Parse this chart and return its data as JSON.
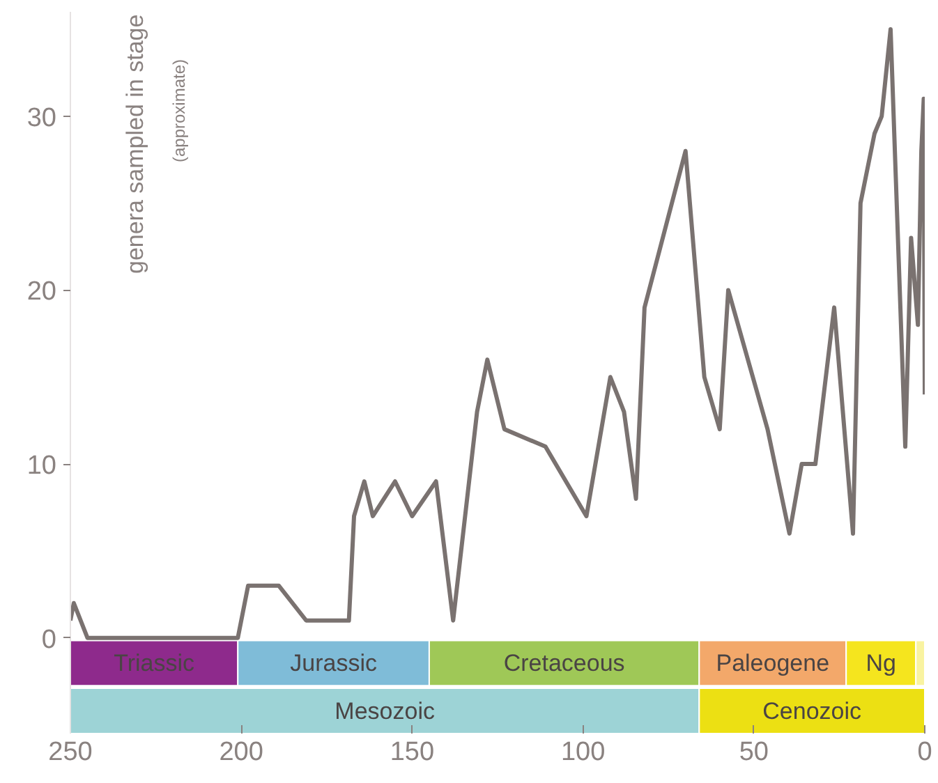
{
  "chart_data": {
    "type": "line",
    "ylabel": "genera sampled in stage",
    "annotations": [
      "(approximate)"
    ],
    "x": [
      250,
      249,
      245,
      201,
      198,
      189,
      181,
      168.5,
      167,
      164,
      161.5,
      155,
      150,
      143,
      138,
      131,
      128,
      123,
      111,
      99,
      92,
      88,
      84.5,
      82,
      70,
      64.5,
      60,
      57.5,
      46,
      39.6,
      36,
      32,
      26.5,
      21,
      18.8,
      14.7,
      12.6,
      10,
      5.7,
      4,
      2,
      1,
      0.3,
      0
    ],
    "series": [
      {
        "color": "#7a7270",
        "values": [
          1,
          2,
          0,
          0,
          3,
          3,
          1,
          1,
          7,
          9,
          7,
          9,
          7,
          9,
          1,
          13,
          16,
          12,
          11,
          7,
          15,
          13,
          8,
          19,
          28,
          15,
          12,
          20,
          12,
          6,
          10,
          10,
          19,
          6,
          25,
          29,
          30,
          35,
          11,
          23,
          18,
          28,
          31,
          14
        ]
      }
    ],
    "xlim": [
      250,
      0
    ],
    "xticks": [
      250,
      200,
      150,
      100,
      50,
      0
    ],
    "ylim": [
      -5.5,
      36
    ],
    "yticks": [
      0,
      10,
      20,
      30
    ],
    "grid": false,
    "line_style": "solid",
    "marker": "none",
    "bands": [
      {
        "axis": "x",
        "from": 250,
        "to": 201,
        "label": "Triassic",
        "color": "#8e2a8c"
      },
      {
        "axis": "x",
        "from": 201,
        "to": 145,
        "label": "Jurassic",
        "color": "#7fbcd8"
      },
      {
        "axis": "x",
        "from": 145,
        "to": 66,
        "label": "Cretaceous",
        "color": "#9fc857"
      },
      {
        "axis": "x",
        "from": 66,
        "to": 23,
        "label": "Paleogene",
        "color": "#f3a86a"
      },
      {
        "axis": "x",
        "from": 23,
        "to": 2.6,
        "label": "Ng",
        "color": "#f5e51e"
      },
      {
        "axis": "x",
        "from": 2.6,
        "to": 0,
        "label": null,
        "color": "#f9f3a0"
      },
      {
        "axis": "x",
        "from": 250,
        "to": 66,
        "label": "Mesozoic",
        "color": "#9dd3d6"
      },
      {
        "axis": "x",
        "from": 66,
        "to": 0,
        "label": "Cenozoic",
        "color": "#ece013"
      }
    ]
  }
}
